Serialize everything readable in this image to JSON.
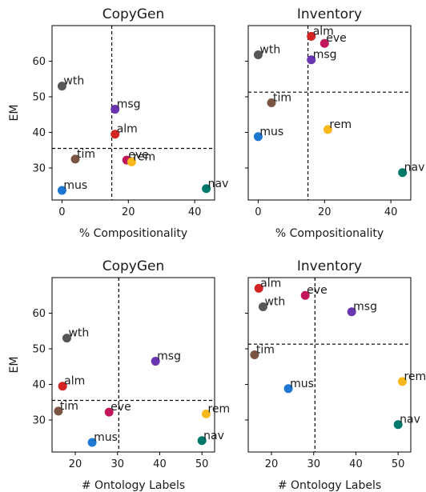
{
  "chart_data": [
    {
      "type": "scatter",
      "title": "CopyGen",
      "xlabel": "% Compositionality",
      "ylabel": "EM",
      "xlim": [
        -3,
        46
      ],
      "ylim": [
        21,
        70
      ],
      "xticks": [
        0,
        20,
        40
      ],
      "yticks": [
        30,
        40,
        50,
        60
      ],
      "xticklabels": [
        "0",
        "20",
        "40"
      ],
      "yticklabels": [
        "30",
        "40",
        "50",
        "60"
      ],
      "vline": 15,
      "hline": 35.5,
      "points": [
        {
          "label": "wth",
          "x": 0,
          "y": 53,
          "color": "#575757"
        },
        {
          "label": "msg",
          "x": 16,
          "y": 46.5,
          "color": "#6a35b0"
        },
        {
          "label": "alm",
          "x": 16,
          "y": 39.5,
          "color": "#d32424"
        },
        {
          "label": "tim",
          "x": 4,
          "y": 32.5,
          "color": "#7a5544"
        },
        {
          "label": "eve",
          "x": 19.5,
          "y": 32.2,
          "color": "#c2185b"
        },
        {
          "label": "rem",
          "x": 21,
          "y": 31.7,
          "color": "#f9b81c"
        },
        {
          "label": "mus",
          "x": 0,
          "y": 23.7,
          "color": "#1e78d2"
        },
        {
          "label": "nav",
          "x": 43.5,
          "y": 24.2,
          "color": "#00796b"
        }
      ]
    },
    {
      "type": "scatter",
      "title": "Inventory",
      "xlabel": "% Compositionality",
      "ylabel": "",
      "xlim": [
        -3,
        46
      ],
      "ylim": [
        21,
        70
      ],
      "xticks": [
        0,
        20,
        40
      ],
      "yticks": [
        30,
        40,
        50,
        60
      ],
      "xticklabels": [
        "0",
        "20",
        "40"
      ],
      "yticklabels": [
        "",
        "",
        "",
        ""
      ],
      "vline": 15,
      "hline": 51.3,
      "points": [
        {
          "label": "alm",
          "x": 16,
          "y": 67,
          "color": "#d32424"
        },
        {
          "label": "eve",
          "x": 20,
          "y": 65,
          "color": "#c2185b"
        },
        {
          "label": "wth",
          "x": 0,
          "y": 61.8,
          "color": "#575757"
        },
        {
          "label": "msg",
          "x": 16,
          "y": 60.4,
          "color": "#6a35b0"
        },
        {
          "label": "tim",
          "x": 4,
          "y": 48.3,
          "color": "#7a5544"
        },
        {
          "label": "rem",
          "x": 21,
          "y": 40.8,
          "color": "#f9b81c"
        },
        {
          "label": "mus",
          "x": 0,
          "y": 38.8,
          "color": "#1e78d2"
        },
        {
          "label": "nav",
          "x": 43.5,
          "y": 28.7,
          "color": "#00796b"
        }
      ]
    },
    {
      "type": "scatter",
      "title": "CopyGen",
      "xlabel": "# Ontology Labels",
      "ylabel": "EM",
      "xlim": [
        14.5,
        53
      ],
      "ylim": [
        21,
        70
      ],
      "xticks": [
        20,
        30,
        40,
        50
      ],
      "yticks": [
        30,
        40,
        50,
        60
      ],
      "xticklabels": [
        "20",
        "30",
        "40",
        "50"
      ],
      "yticklabels": [
        "30",
        "40",
        "50",
        "60"
      ],
      "vline": 30.3,
      "hline": 35.5,
      "points": [
        {
          "label": "wth",
          "x": 18,
          "y": 53,
          "color": "#575757"
        },
        {
          "label": "msg",
          "x": 39,
          "y": 46.5,
          "color": "#6a35b0"
        },
        {
          "label": "alm",
          "x": 17,
          "y": 39.5,
          "color": "#d32424"
        },
        {
          "label": "tim",
          "x": 16,
          "y": 32.5,
          "color": "#7a5544"
        },
        {
          "label": "eve",
          "x": 28,
          "y": 32.2,
          "color": "#c2185b"
        },
        {
          "label": "rem",
          "x": 51,
          "y": 31.7,
          "color": "#f9b81c"
        },
        {
          "label": "mus",
          "x": 24,
          "y": 23.7,
          "color": "#1e78d2"
        },
        {
          "label": "nav",
          "x": 50,
          "y": 24.2,
          "color": "#00796b"
        }
      ]
    },
    {
      "type": "scatter",
      "title": "Inventory",
      "xlabel": "# Ontology Labels",
      "ylabel": "",
      "xlim": [
        14.5,
        53
      ],
      "ylim": [
        21,
        70
      ],
      "xticks": [
        20,
        30,
        40,
        50
      ],
      "yticks": [
        30,
        40,
        50,
        60
      ],
      "xticklabels": [
        "20",
        "30",
        "40",
        "50"
      ],
      "yticklabels": [
        "",
        "",
        "",
        ""
      ],
      "vline": 30.3,
      "hline": 51.3,
      "points": [
        {
          "label": "alm",
          "x": 17,
          "y": 67,
          "color": "#d32424"
        },
        {
          "label": "eve",
          "x": 28,
          "y": 65,
          "color": "#c2185b"
        },
        {
          "label": "wth",
          "x": 18,
          "y": 61.8,
          "color": "#575757"
        },
        {
          "label": "msg",
          "x": 39,
          "y": 60.4,
          "color": "#6a35b0"
        },
        {
          "label": "tim",
          "x": 16,
          "y": 48.3,
          "color": "#7a5544"
        },
        {
          "label": "rem",
          "x": 51,
          "y": 40.8,
          "color": "#f9b81c"
        },
        {
          "label": "mus",
          "x": 24,
          "y": 38.8,
          "color": "#1e78d2"
        },
        {
          "label": "nav",
          "x": 50,
          "y": 28.7,
          "color": "#00796b"
        }
      ]
    }
  ]
}
